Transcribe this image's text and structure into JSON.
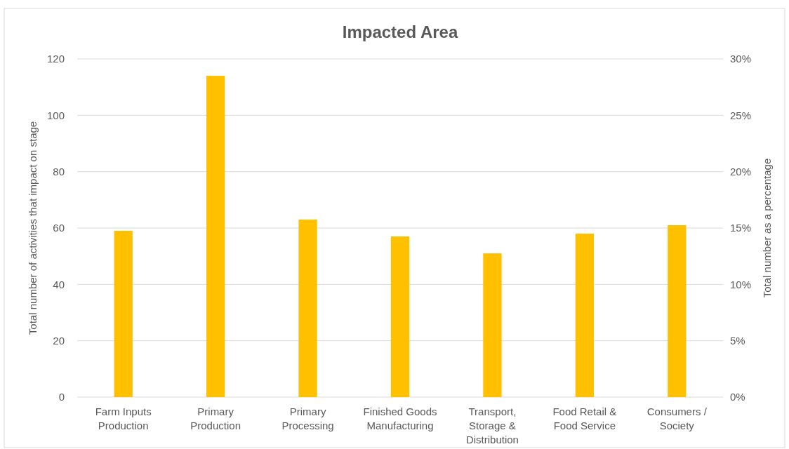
{
  "chart_data": {
    "type": "bar",
    "title": "Impacted Area",
    "categories": [
      "Farm Inputs Production",
      "Primary Production",
      "Primary Processing",
      "Finished Goods Manufacturing",
      "Transport, Storage & Distribution",
      "Food Retail & Food Service",
      "Consumers / Society"
    ],
    "values": [
      59,
      114,
      63,
      57,
      51,
      58,
      61
    ],
    "color": "#ffc000",
    "ylabel": "Total number of activities that impact on stage",
    "y2label": "Total number as a percentage",
    "ylim": [
      0,
      120
    ],
    "yticks": [
      0,
      20,
      40,
      60,
      80,
      100,
      120
    ],
    "y2lim": [
      0,
      30
    ],
    "y2ticks": [
      {
        "value": 0,
        "label": "0%"
      },
      {
        "value": 5,
        "label": "5%"
      },
      {
        "value": 10,
        "label": "10%"
      },
      {
        "value": 15,
        "label": "15%"
      },
      {
        "value": 20,
        "label": "20%"
      },
      {
        "value": 25,
        "label": "25%"
      },
      {
        "value": 30,
        "label": "30%"
      }
    ],
    "grid": "y"
  }
}
